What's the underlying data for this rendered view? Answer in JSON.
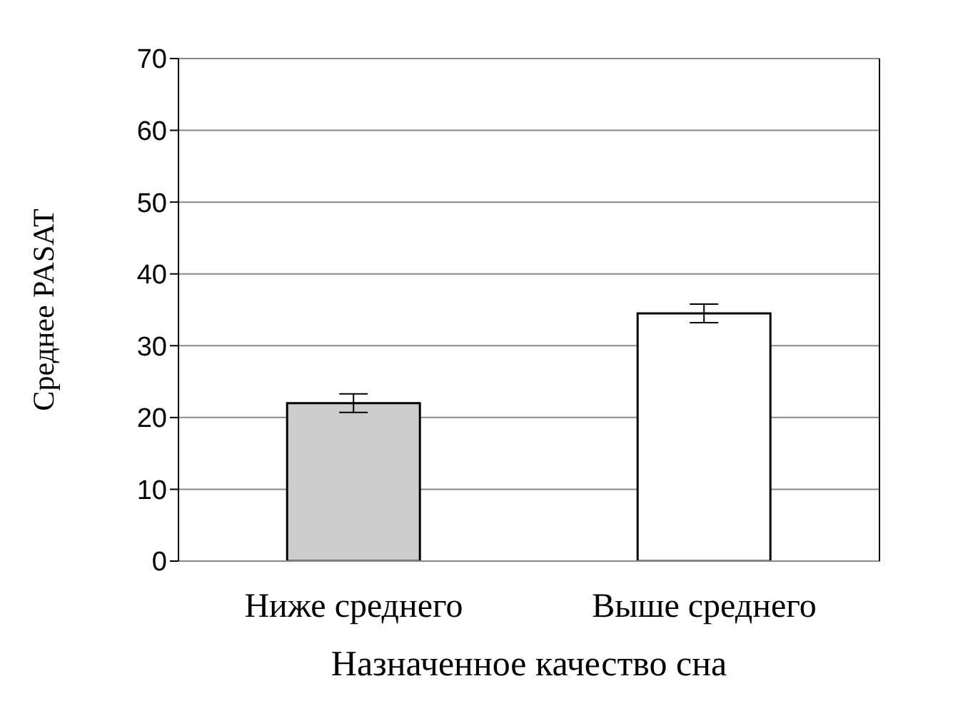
{
  "chart_data": {
    "type": "bar",
    "xlabel": "Назначенное качество сна",
    "ylabel": "Среднее PASAT",
    "categories": [
      "Ниже среднего",
      "Выше среднего"
    ],
    "values": [
      22,
      34.5
    ],
    "colors": [
      "#cccccc",
      "#ffffff"
    ],
    "errors": [
      1.3,
      1.3
    ],
    "ylim": [
      0,
      70
    ],
    "yticks": [
      0,
      10,
      20,
      30,
      40,
      50,
      60,
      70
    ],
    "grid": "y"
  }
}
